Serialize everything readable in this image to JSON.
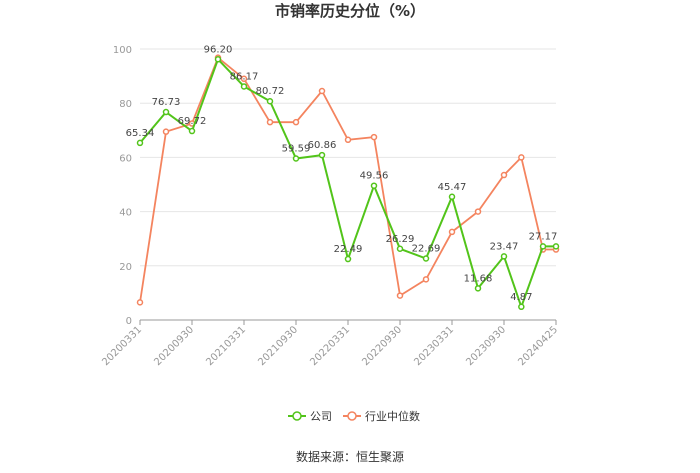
{
  "colors": {
    "company": "#52c41a",
    "industry": "#f4845f",
    "grid": "#e6e6e6",
    "axis": "#999999"
  },
  "source_label": "数据来源：恒生聚源",
  "chart_data": {
    "type": "line",
    "title": "市销率历史分位（%）",
    "xlabel": "",
    "ylabel": "",
    "ylim": [
      0,
      100
    ],
    "yticks": [
      "0",
      "20",
      "40",
      "60",
      "80",
      "100"
    ],
    "grid": true,
    "legend_position": "bottom-center",
    "x": [
      "20200331",
      "20200630",
      "20200930",
      "20201231",
      "20210331",
      "20210630",
      "20210930",
      "20211231",
      "20220331",
      "20220630",
      "20220930",
      "20221231",
      "20230331",
      "20230630",
      "20230930",
      "20231231",
      "20240331",
      "20240425"
    ],
    "x_tick_labels": [
      "20200331",
      "20200930",
      "20210331",
      "20210930",
      "20220331",
      "20220930",
      "20230331",
      "20230930",
      "20240425"
    ],
    "series": [
      {
        "name": "公司",
        "values": [
          65.34,
          76.73,
          69.72,
          96.2,
          86.17,
          80.72,
          59.59,
          60.86,
          22.49,
          49.56,
          26.29,
          22.69,
          45.47,
          11.68,
          23.47,
          4.87,
          27.17,
          27.17
        ],
        "labels": [
          "65.34",
          "76.73",
          "69.72",
          "96.20",
          "86.17",
          "80.72",
          "59.59",
          "60.86",
          "22.49",
          "49.56",
          "26.29",
          "22.69",
          "45.47",
          "11.68",
          "23.47",
          "4.87",
          "27.17",
          ""
        ]
      },
      {
        "name": "行业中位数",
        "values": [
          6.5,
          69.5,
          72.5,
          96.8,
          89.0,
          73.0,
          73.0,
          84.5,
          66.5,
          67.5,
          9.0,
          15.0,
          32.5,
          40.0,
          53.5,
          60.0,
          26.0,
          26.0
        ],
        "labels": []
      }
    ]
  }
}
